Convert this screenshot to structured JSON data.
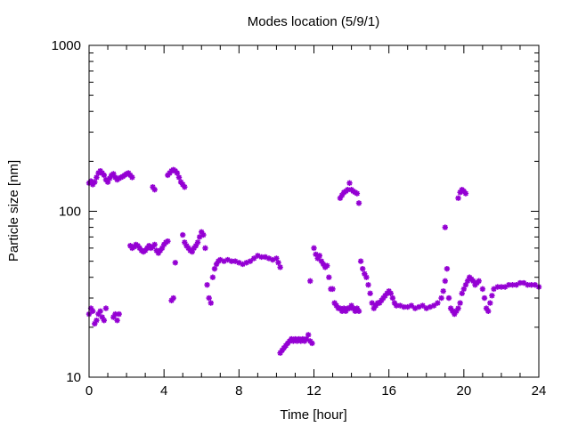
{
  "chart_data": {
    "type": "scatter",
    "title": "Modes location (5/9/1)",
    "xlabel": "Time [hour]",
    "ylabel": "Particle size [nm]",
    "xlim": [
      0,
      24
    ],
    "ylim": [
      10,
      1000
    ],
    "yscale": "log",
    "grid": false,
    "x_ticks": [
      0,
      4,
      8,
      12,
      16,
      20,
      24
    ],
    "y_ticks": [
      10,
      100,
      1000
    ],
    "marker_color": "#9400d3",
    "points": [
      [
        0.0,
        148
      ],
      [
        0.1,
        152
      ],
      [
        0.2,
        145
      ],
      [
        0.3,
        150
      ],
      [
        0.4,
        160
      ],
      [
        0.5,
        170
      ],
      [
        0.6,
        175
      ],
      [
        0.7,
        170
      ],
      [
        0.8,
        165
      ],
      [
        0.9,
        155
      ],
      [
        1.0,
        150
      ],
      [
        1.1,
        158
      ],
      [
        1.2,
        165
      ],
      [
        1.3,
        168
      ],
      [
        1.4,
        160
      ],
      [
        1.5,
        155
      ],
      [
        1.6,
        158
      ],
      [
        1.7,
        160
      ],
      [
        1.8,
        162
      ],
      [
        1.9,
        165
      ],
      [
        2.0,
        168
      ],
      [
        2.1,
        170
      ],
      [
        2.2,
        165
      ],
      [
        2.3,
        160
      ],
      [
        0.0,
        24
      ],
      [
        0.1,
        26
      ],
      [
        0.2,
        25
      ],
      [
        0.3,
        21
      ],
      [
        0.4,
        22
      ],
      [
        0.5,
        24
      ],
      [
        0.6,
        25
      ],
      [
        0.7,
        23
      ],
      [
        0.8,
        22
      ],
      [
        0.9,
        26
      ],
      [
        1.3,
        23
      ],
      [
        1.4,
        24
      ],
      [
        1.5,
        22
      ],
      [
        1.6,
        24
      ],
      [
        2.2,
        62
      ],
      [
        2.3,
        60
      ],
      [
        2.4,
        61
      ],
      [
        2.5,
        63
      ],
      [
        2.6,
        62
      ],
      [
        2.7,
        60
      ],
      [
        2.8,
        58
      ],
      [
        2.9,
        57
      ],
      [
        3.0,
        58
      ],
      [
        3.1,
        60
      ],
      [
        3.2,
        62
      ],
      [
        3.3,
        60
      ],
      [
        3.4,
        61
      ],
      [
        3.5,
        63
      ],
      [
        3.6,
        58
      ],
      [
        3.7,
        56
      ],
      [
        3.8,
        58
      ],
      [
        3.9,
        60
      ],
      [
        4.0,
        63
      ],
      [
        4.1,
        65
      ],
      [
        4.2,
        66
      ],
      [
        3.4,
        140
      ],
      [
        3.5,
        135
      ],
      [
        4.2,
        165
      ],
      [
        4.3,
        170
      ],
      [
        4.4,
        175
      ],
      [
        4.5,
        178
      ],
      [
        4.6,
        175
      ],
      [
        4.7,
        170
      ],
      [
        4.8,
        160
      ],
      [
        4.9,
        150
      ],
      [
        5.0,
        145
      ],
      [
        5.1,
        140
      ],
      [
        4.4,
        29
      ],
      [
        4.5,
        30
      ],
      [
        4.6,
        49
      ],
      [
        5.0,
        72
      ],
      [
        5.1,
        65
      ],
      [
        5.2,
        62
      ],
      [
        5.3,
        60
      ],
      [
        5.4,
        58
      ],
      [
        5.5,
        57
      ],
      [
        5.6,
        60
      ],
      [
        5.7,
        62
      ],
      [
        5.8,
        65
      ],
      [
        5.9,
        70
      ],
      [
        6.0,
        75
      ],
      [
        6.1,
        72
      ],
      [
        6.2,
        60
      ],
      [
        6.3,
        36
      ],
      [
        6.4,
        30
      ],
      [
        6.5,
        28
      ],
      [
        6.6,
        40
      ],
      [
        6.7,
        45
      ],
      [
        6.8,
        48
      ],
      [
        6.9,
        50
      ],
      [
        7.0,
        51
      ],
      [
        7.2,
        50
      ],
      [
        7.4,
        51
      ],
      [
        7.6,
        50
      ],
      [
        7.8,
        50
      ],
      [
        8.0,
        49
      ],
      [
        8.2,
        48
      ],
      [
        8.4,
        49
      ],
      [
        8.6,
        50
      ],
      [
        8.8,
        52
      ],
      [
        9.0,
        54
      ],
      [
        9.2,
        53
      ],
      [
        9.4,
        53
      ],
      [
        9.6,
        52
      ],
      [
        9.8,
        51
      ],
      [
        10.0,
        52
      ],
      [
        10.1,
        49
      ],
      [
        10.2,
        46
      ],
      [
        10.2,
        14
      ],
      [
        10.3,
        14.5
      ],
      [
        10.4,
        15
      ],
      [
        10.5,
        15.5
      ],
      [
        10.6,
        16
      ],
      [
        10.7,
        16.5
      ],
      [
        10.8,
        17
      ],
      [
        10.9,
        16.5
      ],
      [
        11.0,
        17
      ],
      [
        11.1,
        16.5
      ],
      [
        11.2,
        17
      ],
      [
        11.3,
        16.5
      ],
      [
        11.4,
        17
      ],
      [
        11.5,
        16.5
      ],
      [
        11.6,
        17
      ],
      [
        11.7,
        18
      ],
      [
        11.8,
        16.5
      ],
      [
        11.9,
        16
      ],
      [
        11.8,
        38
      ],
      [
        12.0,
        60
      ],
      [
        12.1,
        55
      ],
      [
        12.2,
        52
      ],
      [
        12.3,
        54
      ],
      [
        12.4,
        50
      ],
      [
        12.5,
        48
      ],
      [
        12.6,
        46
      ],
      [
        12.7,
        47
      ],
      [
        12.8,
        40
      ],
      [
        12.9,
        34
      ],
      [
        13.0,
        34
      ],
      [
        13.1,
        28
      ],
      [
        13.2,
        27
      ],
      [
        13.3,
        26
      ],
      [
        13.4,
        26
      ],
      [
        13.5,
        25
      ],
      [
        13.6,
        26
      ],
      [
        13.7,
        25
      ],
      [
        13.8,
        26
      ],
      [
        13.9,
        26
      ],
      [
        14.0,
        27
      ],
      [
        14.1,
        26
      ],
      [
        14.2,
        25
      ],
      [
        14.3,
        26
      ],
      [
        14.4,
        25
      ],
      [
        13.4,
        120
      ],
      [
        13.5,
        125
      ],
      [
        13.6,
        130
      ],
      [
        13.7,
        132
      ],
      [
        13.8,
        135
      ],
      [
        13.9,
        148
      ],
      [
        14.0,
        135
      ],
      [
        14.1,
        132
      ],
      [
        14.2,
        130
      ],
      [
        14.3,
        128
      ],
      [
        14.4,
        112
      ],
      [
        14.5,
        50
      ],
      [
        14.6,
        45
      ],
      [
        14.7,
        42
      ],
      [
        14.8,
        40
      ],
      [
        14.9,
        36
      ],
      [
        15.0,
        32
      ],
      [
        15.1,
        28
      ],
      [
        15.2,
        26
      ],
      [
        15.3,
        27
      ],
      [
        15.4,
        28
      ],
      [
        15.5,
        28
      ],
      [
        15.6,
        29
      ],
      [
        15.7,
        30
      ],
      [
        15.8,
        31
      ],
      [
        15.9,
        32
      ],
      [
        16.0,
        33
      ],
      [
        16.1,
        32
      ],
      [
        16.2,
        30
      ],
      [
        16.3,
        28
      ],
      [
        16.4,
        27
      ],
      [
        16.6,
        27
      ],
      [
        16.8,
        26.5
      ],
      [
        17.0,
        26.5
      ],
      [
        17.2,
        27
      ],
      [
        17.4,
        26
      ],
      [
        17.6,
        26.5
      ],
      [
        17.8,
        27
      ],
      [
        18.0,
        26
      ],
      [
        18.2,
        26.5
      ],
      [
        18.4,
        27
      ],
      [
        18.6,
        28
      ],
      [
        18.8,
        30
      ],
      [
        18.9,
        33
      ],
      [
        19.0,
        38
      ],
      [
        19.1,
        45
      ],
      [
        19.0,
        80
      ],
      [
        19.2,
        30
      ],
      [
        19.3,
        26
      ],
      [
        19.4,
        25
      ],
      [
        19.5,
        24
      ],
      [
        19.6,
        25
      ],
      [
        19.7,
        26
      ],
      [
        19.8,
        28
      ],
      [
        19.7,
        120
      ],
      [
        19.8,
        130
      ],
      [
        19.9,
        135
      ],
      [
        20.0,
        132
      ],
      [
        20.1,
        128
      ],
      [
        19.9,
        32
      ],
      [
        20.0,
        34
      ],
      [
        20.1,
        36
      ],
      [
        20.2,
        38
      ],
      [
        20.3,
        40
      ],
      [
        20.4,
        39
      ],
      [
        20.5,
        38
      ],
      [
        20.6,
        36
      ],
      [
        20.7,
        37
      ],
      [
        20.8,
        38
      ],
      [
        21.0,
        34
      ],
      [
        21.1,
        30
      ],
      [
        21.2,
        26
      ],
      [
        21.3,
        25
      ],
      [
        21.4,
        28
      ],
      [
        21.5,
        31
      ],
      [
        21.6,
        34
      ],
      [
        21.8,
        35
      ],
      [
        22.0,
        35
      ],
      [
        22.2,
        35
      ],
      [
        22.4,
        36
      ],
      [
        22.6,
        36
      ],
      [
        22.8,
        36
      ],
      [
        23.0,
        37
      ],
      [
        23.2,
        37
      ],
      [
        23.4,
        36
      ],
      [
        23.6,
        36
      ],
      [
        23.8,
        36
      ],
      [
        24.0,
        35
      ]
    ]
  }
}
